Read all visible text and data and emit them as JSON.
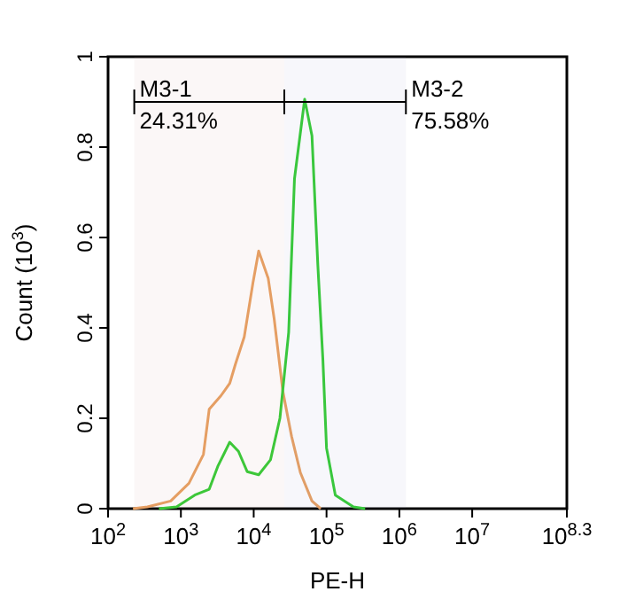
{
  "chart_data": {
    "type": "line",
    "xlabel": "PE-H",
    "ylabel": "Count (10$^{3}$)",
    "log": "x",
    "xlim": [
      100,
      199526231
    ],
    "ylim": [
      0,
      1
    ],
    "xticks": [
      {
        "value": 100,
        "label": "10$^{2}$"
      },
      {
        "value": 1000,
        "label": "10$^{3}$"
      },
      {
        "value": 10000,
        "label": "10$^{4}$"
      },
      {
        "value": 100000,
        "label": "10$^{5}$"
      },
      {
        "value": 1000000,
        "label": "10$^{6}$"
      },
      {
        "value": 10000000,
        "label": "10$^{7}$"
      },
      {
        "value": 199526231,
        "label": "10$^{8.3}$"
      }
    ],
    "yticks": [
      0,
      0.2,
      0.4,
      0.6,
      0.8,
      1
    ],
    "grid": false,
    "marker": "none",
    "line_style": "solid",
    "series": [
      {
        "color": "#e8a060",
        "x": [
          220,
          347,
          724,
          1290,
          2040,
          2450,
          3550,
          4680,
          5620,
          7410,
          9770,
          11700,
          15800,
          19100,
          25100,
          33100,
          43700,
          63100,
          83200
        ],
        "values": [
          0,
          0.004,
          0.017,
          0.056,
          0.12,
          0.22,
          0.25,
          0.277,
          0.32,
          0.38,
          0.5,
          0.57,
          0.51,
          0.42,
          0.26,
          0.16,
          0.08,
          0.017,
          0
        ]
      },
      {
        "color": "#33cc33",
        "x": [
          500,
          871,
          1550,
          2450,
          3240,
          4680,
          6170,
          8130,
          11700,
          17000,
          22900,
          30200,
          36300,
          50100,
          63100,
          75900,
          89100,
          100000,
          132000,
          234000,
          339000
        ],
        "values": [
          0,
          0.004,
          0.03,
          0.043,
          0.095,
          0.147,
          0.127,
          0.082,
          0.075,
          0.108,
          0.2,
          0.39,
          0.73,
          0.906,
          0.825,
          0.54,
          0.33,
          0.134,
          0.03,
          0.004,
          0
        ]
      }
    ],
    "bands": [
      {
        "axis": "x",
        "from": 229,
        "to": 26300,
        "label": "M3-1"
      },
      {
        "axis": "x",
        "from": 26300,
        "to": 1230000,
        "label": "M3-2"
      }
    ],
    "annotations": [
      {
        "text": "24.31%",
        "x": 229,
        "y": 0.9
      },
      {
        "text": "75.58%",
        "x": 1230000,
        "y": 0.9
      }
    ]
  }
}
